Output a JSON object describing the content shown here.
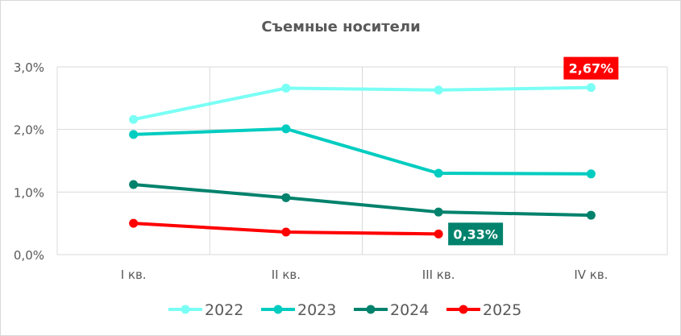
{
  "chart_data": {
    "type": "line",
    "title": "Съемные носители",
    "categories": [
      "I кв.",
      "II кв.",
      "III кв.",
      "IV кв."
    ],
    "ylim": [
      0,
      3
    ],
    "yticks": [
      "0,0%",
      "1,0%",
      "2,0%",
      "3,0%"
    ],
    "grid": true,
    "legend": "bottom",
    "series": [
      {
        "name": "2022",
        "color": "#7AFFF5",
        "values": [
          2.16,
          2.66,
          2.63,
          2.67
        ]
      },
      {
        "name": "2023",
        "color": "#00CCC0",
        "values": [
          1.92,
          2.01,
          1.3,
          1.29
        ]
      },
      {
        "name": "2024",
        "color": "#00826C",
        "values": [
          1.12,
          0.91,
          0.68,
          0.63
        ]
      },
      {
        "name": "2025",
        "color": "#FF0000",
        "values": [
          0.5,
          0.36,
          0.33,
          null
        ]
      }
    ],
    "annotations": [
      {
        "series": "2022",
        "category": "IV кв.",
        "text": "2,67%",
        "bg": "#FF0000"
      },
      {
        "series": "2025",
        "category": "III кв.",
        "text": "0,33%",
        "bg": "#00826C"
      }
    ]
  }
}
